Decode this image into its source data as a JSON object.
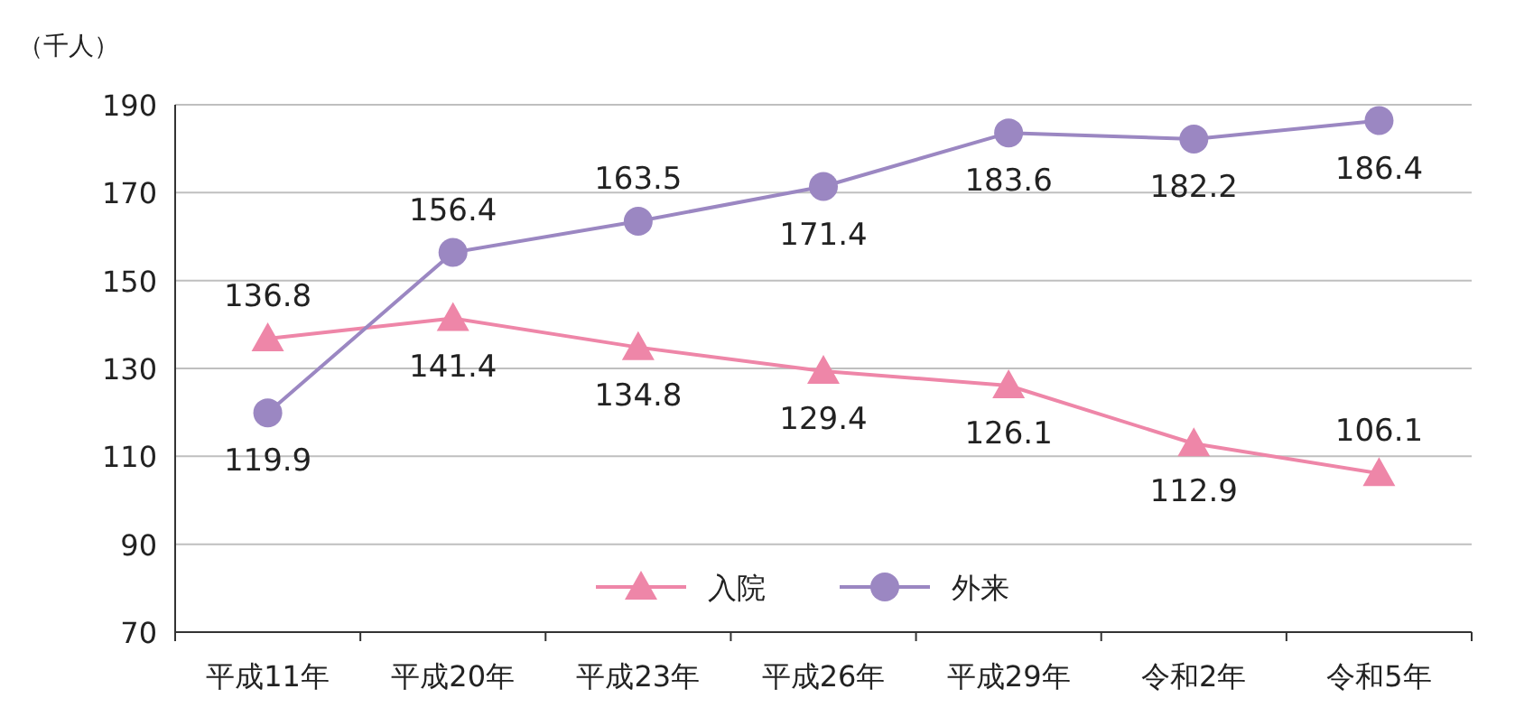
{
  "chart_data": {
    "type": "line",
    "ylabel": "（千人）",
    "categories": [
      "平成11年",
      "平成20年",
      "平成23年",
      "平成26年",
      "平成29年",
      "令和2年",
      "令和5年"
    ],
    "series": [
      {
        "name": "入院",
        "color": "#ee86a8",
        "marker": "triangle",
        "values": [
          136.8,
          141.4,
          134.8,
          129.4,
          126.1,
          112.9,
          106.1
        ]
      },
      {
        "name": "外来",
        "color": "#9b87c2",
        "marker": "circle",
        "values": [
          119.9,
          156.4,
          163.5,
          171.4,
          183.6,
          182.2,
          186.4
        ]
      }
    ],
    "ylim": [
      70,
      190
    ],
    "yticks": [
      70,
      90,
      110,
      130,
      150,
      170,
      190
    ],
    "grid": "y",
    "data_labels": true,
    "legend": "bottom"
  }
}
